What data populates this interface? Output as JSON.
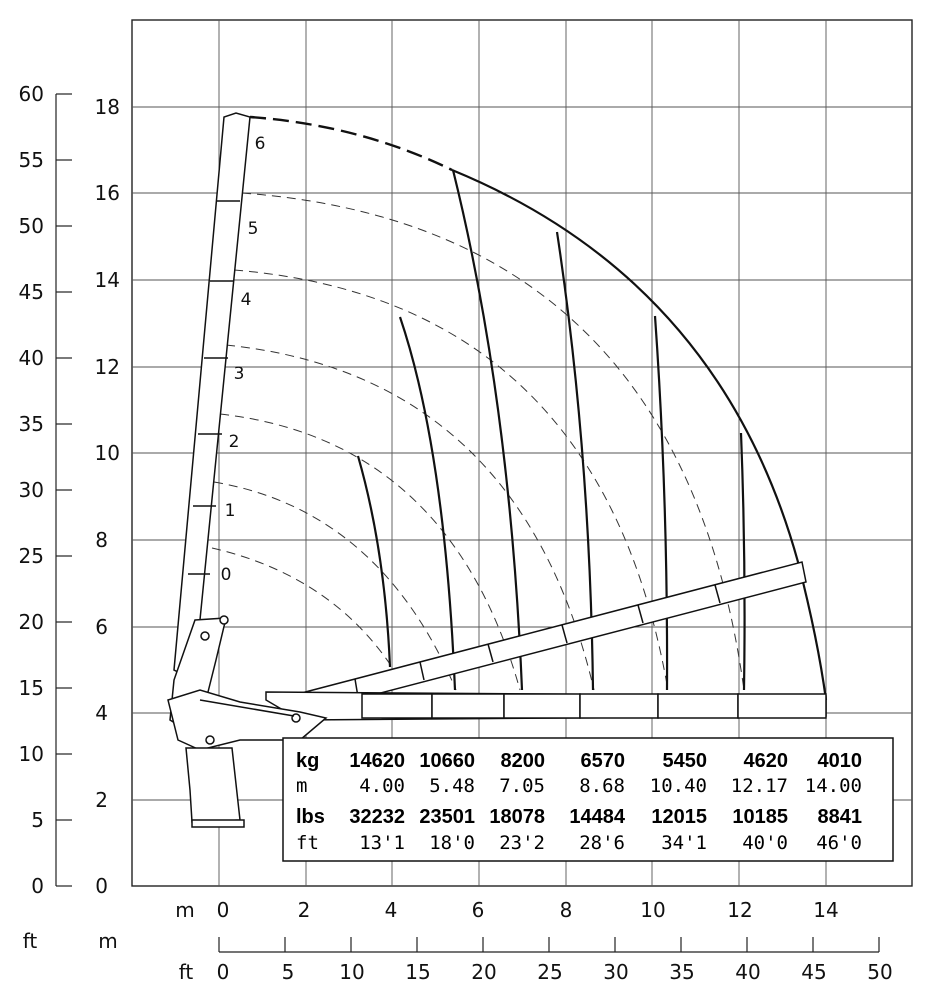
{
  "axes": {
    "ft_left_ticks": [
      "0",
      "5",
      "10",
      "15",
      "20",
      "25",
      "30",
      "35",
      "40",
      "45",
      "50",
      "55",
      "60"
    ],
    "m_left_ticks": [
      "0",
      "2",
      "4",
      "6",
      "8",
      "10",
      "12",
      "14",
      "16",
      "18"
    ],
    "m_bottom_unit": "m",
    "m_bottom_ticks": [
      "0",
      "2",
      "4",
      "6",
      "8",
      "10",
      "12",
      "14"
    ],
    "ft_unit_label": "ft",
    "m_unit_label": "m",
    "ft_bottom_unit": "ft",
    "ft_bottom_ticks": [
      "0",
      "5",
      "10",
      "15",
      "20",
      "25",
      "30",
      "35",
      "40",
      "45",
      "50"
    ]
  },
  "boom_segments": [
    "0",
    "1",
    "2",
    "3",
    "4",
    "5",
    "6"
  ],
  "load_table": {
    "rows": [
      {
        "unit": "kg",
        "values": [
          "14620",
          "10660",
          "8200",
          "6570",
          "5450",
          "4620",
          "4010"
        ],
        "bold": true
      },
      {
        "unit": "m",
        "values": [
          "4.00",
          "5.48",
          "7.05",
          "8.68",
          "10.40",
          "12.17",
          "14.00"
        ],
        "bold": false
      },
      {
        "unit": "lbs",
        "values": [
          "32232",
          "23501",
          "18078",
          "14484",
          "12015",
          "10185",
          "8841"
        ],
        "bold": true
      },
      {
        "unit": "ft",
        "values": [
          "13'1",
          "18'0",
          "23'2",
          "28'6",
          "34'1",
          "40'0",
          "46'0"
        ],
        "bold": false
      }
    ]
  }
}
